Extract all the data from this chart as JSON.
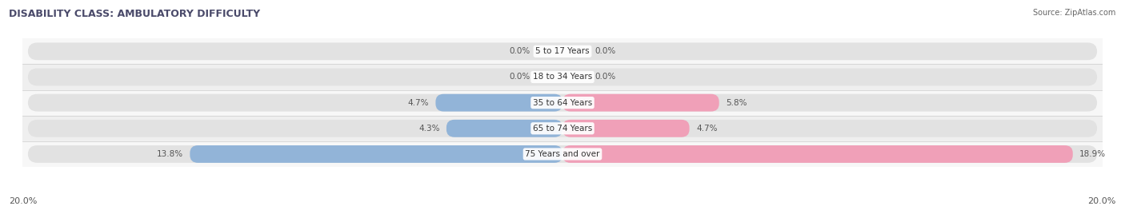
{
  "title": "DISABILITY CLASS: AMBULATORY DIFFICULTY",
  "source": "Source: ZipAtlas.com",
  "categories": [
    "5 to 17 Years",
    "18 to 34 Years",
    "35 to 64 Years",
    "65 to 74 Years",
    "75 Years and over"
  ],
  "male_values": [
    0.0,
    0.0,
    4.7,
    4.3,
    13.8
  ],
  "female_values": [
    0.0,
    0.0,
    5.8,
    4.7,
    18.9
  ],
  "max_val": 20.0,
  "male_color": "#92b4d8",
  "female_color": "#f0a0b8",
  "row_bg_even": "#f7f7f7",
  "row_bg_odd": "#efefef",
  "bar_bg_color": "#e2e2e2",
  "title_color": "#4a4a6a",
  "source_color": "#666666",
  "label_color": "#444444",
  "value_label_color": "#555555",
  "xlabel_bottom_left": "20.0%",
  "xlabel_bottom_right": "20.0%"
}
